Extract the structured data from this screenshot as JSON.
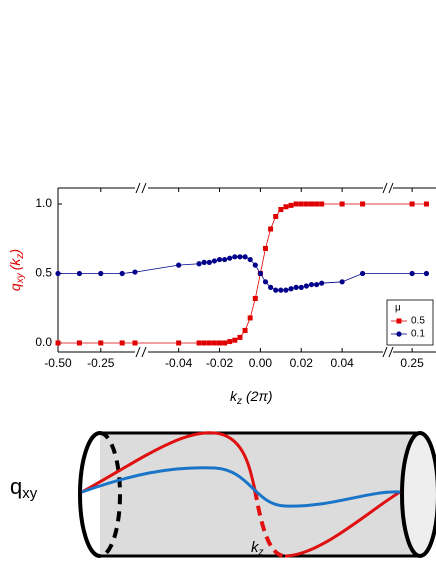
{
  "chart_data": {
    "type": "line",
    "ylabel": [
      "q",
      "xy",
      "(k",
      "z",
      ")"
    ],
    "xlabel": [
      "k",
      "z",
      "(2π)"
    ],
    "ylim": [
      -0.065,
      1.115
    ],
    "yticks": [
      {
        "value": 0,
        "label": "0.0"
      },
      {
        "value": 0.5,
        "label": "0.5"
      },
      {
        "value": 1,
        "label": "1.0"
      }
    ],
    "x_segments": [
      {
        "xlim": [
          -0.5,
          -0.05
        ],
        "xticks": [
          {
            "value": -0.5,
            "label": "-0.50"
          },
          {
            "value": -0.25,
            "label": "-0.25"
          }
        ]
      },
      {
        "xlim": [
          -0.055,
          0.06
        ],
        "xticks": [
          {
            "value": -0.04,
            "label": "-0.04"
          },
          {
            "value": -0.02,
            "label": "-0.02"
          },
          {
            "value": 0,
            "label": "0.00"
          },
          {
            "value": 0.02,
            "label": "0.02"
          },
          {
            "value": 0.04,
            "label": "0.04"
          }
        ]
      },
      {
        "xlim": [
          0.05,
          0.5
        ],
        "xticks": [
          {
            "value": 0.25,
            "label": "0.25"
          }
        ]
      }
    ],
    "x": [
      -0.5,
      -0.375,
      -0.25,
      -0.125,
      -0.05,
      -0.04,
      -0.03,
      -0.0275,
      -0.025,
      -0.0225,
      -0.02,
      -0.0175,
      -0.015,
      -0.0125,
      -0.01,
      -0.0075,
      -0.005,
      -0.0025,
      0,
      0.0025,
      0.005,
      0.0075,
      0.01,
      0.0125,
      0.015,
      0.0175,
      0.02,
      0.0225,
      0.025,
      0.0275,
      0.03,
      0.04,
      0.05,
      0.25,
      0.4
    ],
    "legend_title": "μ",
    "legend_position": "lower right",
    "series": [
      {
        "name": "0.5",
        "color": "#e00000",
        "marker": "square",
        "values": [
          0,
          0,
          0,
          0,
          0,
          0,
          0,
          0,
          0,
          0,
          0,
          0,
          0.01,
          0.02,
          0.04,
          0.09,
          0.18,
          0.32,
          0.5,
          0.68,
          0.82,
          0.91,
          0.96,
          0.98,
          0.99,
          1,
          1,
          1,
          1,
          1,
          1,
          1,
          1,
          1,
          1
        ]
      },
      {
        "name": "0.1",
        "color": "#00008b",
        "marker": "circle",
        "values": [
          0.5,
          0.5,
          0.5,
          0.5,
          0.51,
          0.56,
          0.57,
          0.58,
          0.58,
          0.59,
          0.6,
          0.6,
          0.61,
          0.62,
          0.62,
          0.62,
          0.6,
          0.56,
          0.5,
          0.44,
          0.4,
          0.38,
          0.38,
          0.38,
          0.39,
          0.4,
          0.4,
          0.41,
          0.42,
          0.42,
          0.43,
          0.44,
          0.5,
          0.5,
          0.5
        ]
      }
    ]
  },
  "diagram": {
    "ylabel": [
      "q",
      "xy"
    ],
    "xlabel": [
      "k",
      "z"
    ]
  }
}
